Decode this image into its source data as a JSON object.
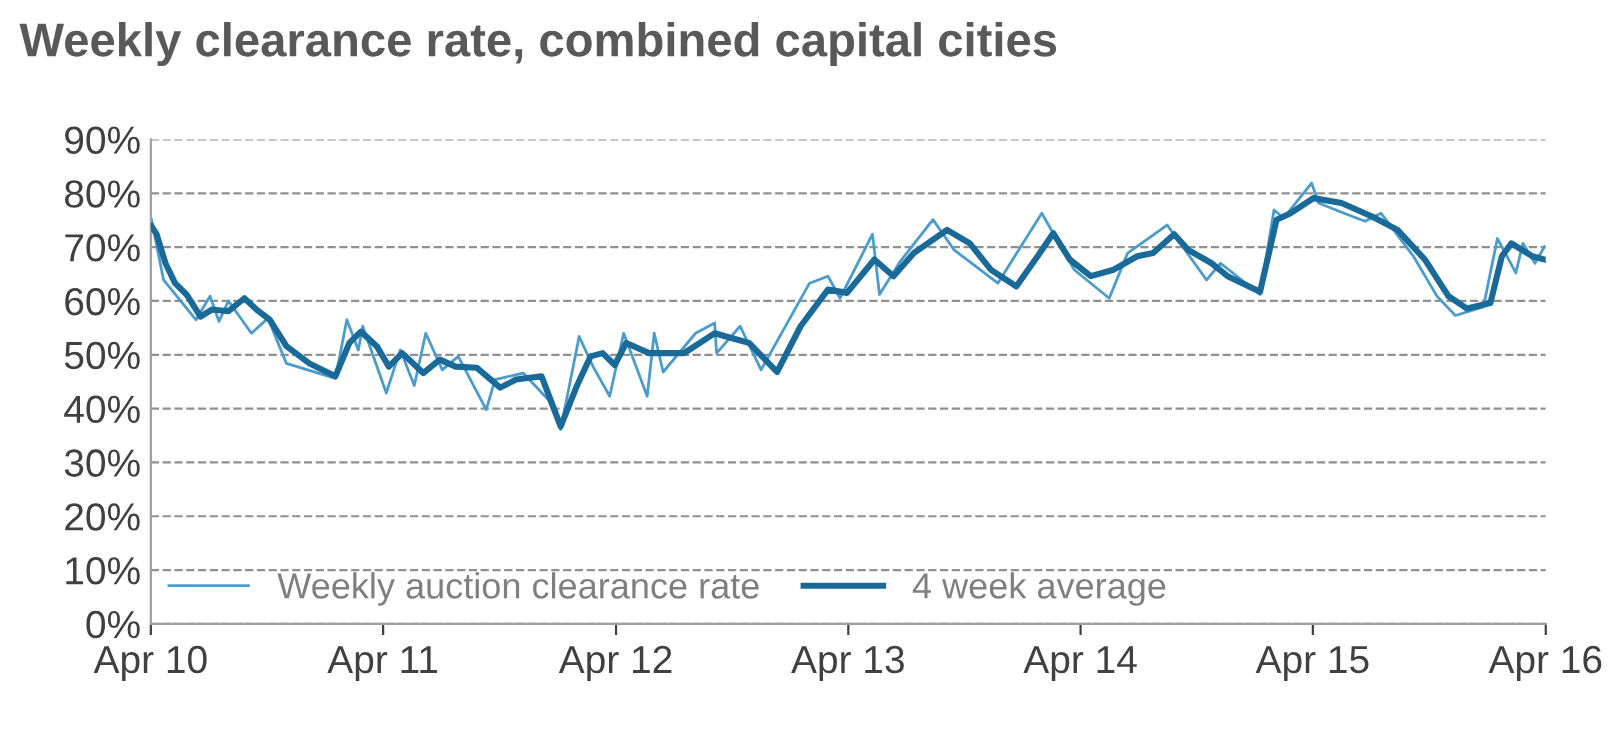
{
  "chart_data": {
    "type": "line",
    "title": "Weekly clearance rate, combined capital cities",
    "xlim": [
      "2010-04-01",
      "2016-04-01"
    ],
    "xticks": [
      {
        "value": "2010-04-01",
        "label": "Apr 10"
      },
      {
        "value": "2011-04-01",
        "label": "Apr 11"
      },
      {
        "value": "2012-04-01",
        "label": "Apr 12"
      },
      {
        "value": "2013-04-01",
        "label": "Apr 13"
      },
      {
        "value": "2014-04-01",
        "label": "Apr 14"
      },
      {
        "value": "2015-04-01",
        "label": "Apr 15"
      },
      {
        "value": "2016-04-01",
        "label": "Apr 16"
      }
    ],
    "ylim": [
      0,
      90
    ],
    "yticks": [
      {
        "value": 0,
        "label": "0%"
      },
      {
        "value": 10,
        "label": "10%"
      },
      {
        "value": 20,
        "label": "20%"
      },
      {
        "value": 30,
        "label": "30%"
      },
      {
        "value": 40,
        "label": "40%"
      },
      {
        "value": 50,
        "label": "50%"
      },
      {
        "value": 60,
        "label": "60%"
      },
      {
        "value": 70,
        "label": "70%"
      },
      {
        "value": 80,
        "label": "80%"
      },
      {
        "value": 90,
        "label": "90%"
      }
    ],
    "grid": "y",
    "legend": "bottom left",
    "marker": "none",
    "series": [
      {
        "name": "Weekly auction clearance rate",
        "color": "#4a9ccc",
        "x": [
          "2010-04-02",
          "2010-04-21",
          "2010-06-11",
          "2010-07-03",
          "2010-07-17",
          "2010-08-01",
          "2010-09-06",
          "2010-10-02",
          "2010-10-31",
          "2011-01-16",
          "2011-02-03",
          "2011-02-21",
          "2011-02-28",
          "2011-04-06",
          "2011-04-28",
          "2011-05-20",
          "2011-06-07",
          "2011-07-03",
          "2011-07-28",
          "2011-09-10",
          "2011-09-24",
          "2011-11-07",
          "2011-12-17",
          "2012-01-05",
          "2012-02-03",
          "2012-02-25",
          "2012-03-22",
          "2012-04-13",
          "2012-05-20",
          "2012-05-31",
          "2012-06-14",
          "2012-08-04",
          "2012-09-03",
          "2012-09-06",
          "2012-10-13",
          "2012-11-15",
          "2013-01-30",
          "2013-02-28",
          "2013-03-19",
          "2013-05-09",
          "2013-05-20",
          "2013-06-22",
          "2013-08-12",
          "2013-09-14",
          "2013-11-22",
          "2014-01-30",
          "2014-03-22",
          "2014-05-16",
          "2014-06-14",
          "2014-08-15",
          "2014-10-16",
          "2014-11-07",
          "2015-01-08",
          "2015-01-30",
          "2015-02-14",
          "2015-03-30",
          "2015-04-10",
          "2015-05-20",
          "2015-06-22",
          "2015-07-17",
          "2015-09-06",
          "2015-10-13",
          "2015-11-11",
          "2015-12-25",
          "2016-01-16",
          "2016-02-14",
          "2016-02-25",
          "2016-03-15",
          "2016-03-30"
        ],
        "values": [
          75.1,
          63.9,
          56.5,
          60.9,
          56.2,
          60.0,
          54.0,
          56.8,
          48.4,
          45.6,
          56.5,
          50.9,
          55.3,
          42.9,
          50.9,
          44.3,
          54.0,
          47.2,
          49.7,
          39.8,
          45.4,
          46.6,
          41.6,
          36.1,
          53.4,
          47.8,
          42.3,
          54.0,
          42.3,
          54.0,
          46.8,
          54.0,
          55.9,
          50.3,
          55.3,
          47.2,
          63.3,
          64.6,
          60.5,
          72.4,
          61.2,
          67.4,
          75.1,
          69.5,
          63.3,
          76.3,
          65.8,
          60.5,
          68.9,
          74.1,
          63.9,
          67.0,
          61.2,
          76.9,
          75.4,
          81.9,
          78.2,
          76.3,
          74.8,
          76.3,
          68.3,
          60.9,
          57.3,
          58.9,
          71.6,
          65.2,
          70.7,
          67.0,
          70.1
        ]
      },
      {
        "name": "4 week average",
        "color": "#1a6a99",
        "x": [
          "2010-04-02",
          "2010-04-10",
          "2010-04-24",
          "2010-05-09",
          "2010-05-27",
          "2010-06-18",
          "2010-07-06",
          "2010-08-01",
          "2010-08-26",
          "2010-09-14",
          "2010-10-05",
          "2010-10-31",
          "2010-12-06",
          "2011-01-16",
          "2011-02-07",
          "2011-02-25",
          "2011-03-22",
          "2011-04-10",
          "2011-05-01",
          "2011-06-03",
          "2011-06-29",
          "2011-07-24",
          "2011-08-26",
          "2011-10-02",
          "2011-10-27",
          "2011-12-06",
          "2012-01-05",
          "2012-01-30",
          "2012-02-21",
          "2012-03-11",
          "2012-03-30",
          "2012-04-17",
          "2012-05-23",
          "2012-07-17",
          "2012-09-03",
          "2012-10-09",
          "2012-10-27",
          "2012-12-10",
          "2013-01-16",
          "2013-02-28",
          "2013-03-30",
          "2013-05-12",
          "2013-06-11",
          "2013-07-13",
          "2013-09-03",
          "2013-10-09",
          "2013-11-11",
          "2013-12-21",
          "2014-01-27",
          "2014-02-17",
          "2014-03-15",
          "2014-04-17",
          "2014-05-23",
          "2014-06-29",
          "2014-07-24",
          "2014-08-26",
          "2014-09-17",
          "2014-10-24",
          "2014-11-18",
          "2015-01-08",
          "2015-02-03",
          "2015-02-25",
          "2015-04-02",
          "2015-05-16",
          "2015-07-03",
          "2015-08-12",
          "2015-09-24",
          "2015-10-31",
          "2015-11-29",
          "2016-01-05",
          "2016-01-23",
          "2016-02-07",
          "2016-03-11",
          "2016-03-30"
        ],
        "values": [
          73.9,
          72.4,
          67.0,
          63.3,
          61.2,
          57.1,
          58.4,
          58.1,
          60.5,
          58.4,
          56.5,
          51.6,
          48.4,
          46.0,
          52.2,
          54.3,
          51.6,
          47.8,
          50.3,
          46.6,
          49.1,
          47.8,
          47.6,
          43.9,
          45.4,
          46.0,
          36.7,
          44.1,
          49.7,
          50.3,
          48.1,
          52.2,
          50.3,
          50.3,
          54.0,
          52.8,
          52.2,
          46.8,
          55.3,
          62.1,
          61.5,
          67.7,
          64.6,
          68.9,
          73.2,
          70.7,
          65.8,
          62.7,
          68.9,
          72.6,
          67.7,
          64.6,
          65.8,
          68.3,
          68.9,
          72.4,
          69.5,
          67.0,
          64.6,
          61.7,
          75.1,
          76.3,
          79.1,
          78.2,
          75.7,
          73.2,
          67.7,
          60.9,
          58.6,
          59.6,
          68.3,
          70.7,
          68.3,
          67.7
        ]
      }
    ]
  }
}
